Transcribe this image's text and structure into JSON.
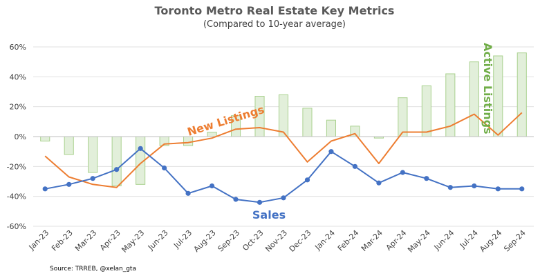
{
  "chart_data": {
    "type": "bar",
    "title": "Toronto Metro Real Estate Key Metrics",
    "subtitle": "(Compared to 10-year average)",
    "source": "Source: TRREB, @xelan_gta",
    "categories": [
      "Jan-23",
      "Feb-23",
      "Mar-23",
      "Apr-23",
      "May-23",
      "Jun-23",
      "Jul-23",
      "Aug-23",
      "Sep-23",
      "Oct-23",
      "Nov-23",
      "Dec-23",
      "Jan-24",
      "Feb-24",
      "Mar-24",
      "Apr-24",
      "May-24",
      "Jun-24",
      "Jul-24",
      "Aug-24",
      "Sep-24"
    ],
    "ylim": [
      -60,
      60
    ],
    "yticks": [
      60,
      40,
      20,
      0,
      -20,
      -40,
      -60
    ],
    "ytick_labels": [
      "60%",
      "40%",
      "20%",
      "0%",
      "-20%",
      "-40%",
      "-60%"
    ],
    "grid": true,
    "series": [
      {
        "name": "Active Listings",
        "type": "bar",
        "color": "#e2efda",
        "edge_color": "#a9d18e",
        "label_color": "#70ad47",
        "values": [
          -3,
          -12,
          -24,
          -33,
          -32,
          -6,
          -6,
          3,
          14,
          27,
          28,
          19,
          11,
          7,
          -1,
          26,
          34,
          42,
          50,
          54,
          56
        ]
      },
      {
        "name": "New Listings",
        "type": "line",
        "color": "#ed7d31",
        "values": [
          -13,
          -27,
          -32,
          -34,
          -18,
          -5,
          -4,
          -1,
          5,
          6,
          3,
          -17,
          -3,
          2,
          -18,
          3,
          3,
          7,
          15,
          1,
          16
        ]
      },
      {
        "name": "Sales",
        "type": "line",
        "color": "#4472c4",
        "values": [
          -35,
          -32,
          -28,
          -22,
          -8,
          -21,
          -38,
          -33,
          -42,
          -44,
          -41,
          -29,
          -10,
          -20,
          -31,
          -24,
          -28,
          -34,
          -33,
          -35,
          -35
        ]
      }
    ]
  }
}
